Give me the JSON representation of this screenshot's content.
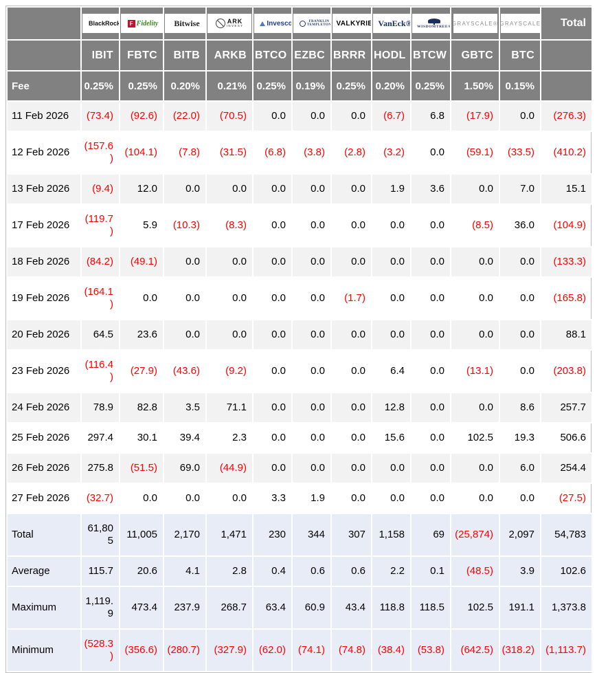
{
  "table": {
    "fee_label": "Fee",
    "total_label": "Total",
    "columns": [
      {
        "ticker": "IBIT",
        "fee": "0.25%",
        "provider": "BlackRock",
        "logo": {
          "id": "blackrock",
          "parts": [
            "BlackRock"
          ]
        }
      },
      {
        "ticker": "FBTC",
        "fee": "0.25%",
        "provider": "Fidelity",
        "logo": {
          "id": "fidelity",
          "parts": [
            "F",
            "Fidelity"
          ]
        }
      },
      {
        "ticker": "BITB",
        "fee": "0.20%",
        "provider": "Bitwise",
        "logo": {
          "id": "bitwise",
          "parts": [
            "Bitwise"
          ]
        }
      },
      {
        "ticker": "ARKB",
        "fee": "0.21%",
        "provider": "ARK Invest",
        "logo": {
          "id": "ark",
          "parts": [
            "ARK",
            "INVEST"
          ]
        }
      },
      {
        "ticker": "BTCO",
        "fee": "0.25%",
        "provider": "Invesco",
        "logo": {
          "id": "invesco",
          "parts": [
            "Invesco"
          ]
        }
      },
      {
        "ticker": "EZBC",
        "fee": "0.19%",
        "provider": "Franklin Templeton",
        "logo": {
          "id": "franklin",
          "parts": [
            "FRANKLIN",
            "TEMPLETON"
          ]
        }
      },
      {
        "ticker": "BRRR",
        "fee": "0.25%",
        "provider": "Valkyrie",
        "logo": {
          "id": "valkyrie",
          "parts": [
            "VALKYRIE"
          ]
        }
      },
      {
        "ticker": "HODL",
        "fee": "0.20%",
        "provider": "VanEck",
        "logo": {
          "id": "vaneck",
          "parts": [
            "VanEck®"
          ]
        }
      },
      {
        "ticker": "BTCW",
        "fee": "0.25%",
        "provider": "WisdomTree",
        "logo": {
          "id": "wisdomtree",
          "parts": [
            "WISDOMTREE®"
          ]
        }
      },
      {
        "ticker": "GBTC",
        "fee": "1.50%",
        "provider": "Grayscale",
        "logo": {
          "id": "grayscale",
          "parts": [
            "GRAYSCALE®"
          ]
        }
      },
      {
        "ticker": "BTC",
        "fee": "0.15%",
        "provider": "Grayscale",
        "logo": {
          "id": "grayscale",
          "parts": [
            "GRAYSCALE®"
          ]
        }
      }
    ],
    "rows": [
      {
        "label": "11 Feb 2026",
        "values": [
          "(73.4)",
          "(92.6)",
          "(22.0)",
          "(70.5)",
          "0.0",
          "0.0",
          "0.0",
          "(6.7)",
          "6.8",
          "(17.9)",
          "0.0",
          "(276.3)"
        ]
      },
      {
        "label": "12 Feb 2026",
        "values": [
          "(157.6)",
          "(104.1)",
          "(7.8)",
          "(31.5)",
          "(6.8)",
          "(3.8)",
          "(2.8)",
          "(3.2)",
          "0.0",
          "(59.1)",
          "(33.5)",
          "(410.2)"
        ]
      },
      {
        "label": "13 Feb 2026",
        "values": [
          "(9.4)",
          "12.0",
          "0.0",
          "0.0",
          "0.0",
          "0.0",
          "0.0",
          "1.9",
          "3.6",
          "0.0",
          "7.0",
          "15.1"
        ]
      },
      {
        "label": "17 Feb 2026",
        "values": [
          "(119.7)",
          "5.9",
          "(10.3)",
          "(8.3)",
          "0.0",
          "0.0",
          "0.0",
          "0.0",
          "0.0",
          "(8.5)",
          "36.0",
          "(104.9)"
        ]
      },
      {
        "label": "18 Feb 2026",
        "values": [
          "(84.2)",
          "(49.1)",
          "0.0",
          "0.0",
          "0.0",
          "0.0",
          "0.0",
          "0.0",
          "0.0",
          "0.0",
          "0.0",
          "(133.3)"
        ]
      },
      {
        "label": "19 Feb 2026",
        "values": [
          "(164.1)",
          "0.0",
          "0.0",
          "0.0",
          "0.0",
          "0.0",
          "(1.7)",
          "0.0",
          "0.0",
          "0.0",
          "0.0",
          "(165.8)"
        ]
      },
      {
        "label": "20 Feb 2026",
        "values": [
          "64.5",
          "23.6",
          "0.0",
          "0.0",
          "0.0",
          "0.0",
          "0.0",
          "0.0",
          "0.0",
          "0.0",
          "0.0",
          "88.1"
        ]
      },
      {
        "label": "23 Feb 2026",
        "values": [
          "(116.4)",
          "(27.9)",
          "(43.6)",
          "(9.2)",
          "0.0",
          "0.0",
          "0.0",
          "6.4",
          "0.0",
          "(13.1)",
          "0.0",
          "(203.8)"
        ]
      },
      {
        "label": "24 Feb 2026",
        "values": [
          "78.9",
          "82.8",
          "3.5",
          "71.1",
          "0.0",
          "0.0",
          "0.0",
          "12.8",
          "0.0",
          "0.0",
          "8.6",
          "257.7"
        ]
      },
      {
        "label": "25 Feb 2026",
        "values": [
          "297.4",
          "30.1",
          "39.4",
          "2.3",
          "0.0",
          "0.0",
          "0.0",
          "15.6",
          "0.0",
          "102.5",
          "19.3",
          "506.6"
        ]
      },
      {
        "label": "26 Feb 2026",
        "values": [
          "275.8",
          "(51.5)",
          "69.0",
          "(44.9)",
          "0.0",
          "0.0",
          "0.0",
          "0.0",
          "0.0",
          "0.0",
          "6.0",
          "254.4"
        ]
      },
      {
        "label": "27 Feb 2026",
        "values": [
          "(32.7)",
          "0.0",
          "0.0",
          "0.0",
          "3.3",
          "1.9",
          "0.0",
          "0.0",
          "0.0",
          "0.0",
          "0.0",
          "(27.5)"
        ]
      }
    ],
    "summary_rows": [
      {
        "label": "Total",
        "values": [
          "61,805",
          "11,005",
          "2,170",
          "1,471",
          "230",
          "344",
          "307",
          "1,158",
          "69",
          "(25,874)",
          "2,097",
          "54,783"
        ]
      },
      {
        "label": "Average",
        "values": [
          "115.7",
          "20.6",
          "4.1",
          "2.8",
          "0.4",
          "0.6",
          "0.6",
          "2.2",
          "0.1",
          "(48.5)",
          "3.9",
          "102.6"
        ]
      },
      {
        "label": "Maximum",
        "values": [
          "1,119.9",
          "473.4",
          "237.9",
          "268.7",
          "63.4",
          "60.9",
          "43.4",
          "118.8",
          "118.5",
          "102.5",
          "191.1",
          "1,373.8"
        ]
      },
      {
        "label": "Minimum",
        "values": [
          "(528.3)",
          "(356.6)",
          "(280.7)",
          "(327.9)",
          "(62.0)",
          "(74.1)",
          "(74.8)",
          "(38.4)",
          "(53.8)",
          "(642.5)",
          "(318.2)",
          "(1,113.7)"
        ]
      }
    ],
    "colors": {
      "header_bg": "#818181",
      "header_text": "#ffffff",
      "row_stripe": "#f2f2f2",
      "summary_bg": "#e8ecf7",
      "negative": "#ff0000"
    }
  }
}
